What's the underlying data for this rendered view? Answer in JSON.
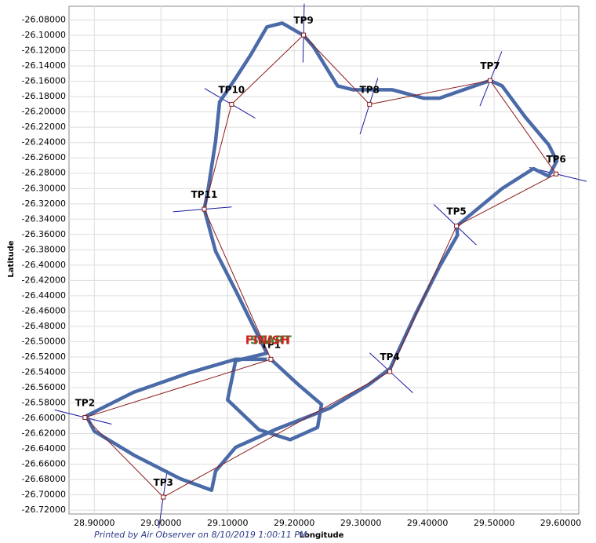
{
  "chart_data": {
    "type": "line",
    "x_label": "Longitude",
    "y_label": "Latitude",
    "footer": "Printed by Air Observer on 8/10/2019 1:00:11 PM",
    "start_label": "START",
    "start_color": "#2e8b2e",
    "finish_label": "FINISH",
    "finish_color": "#d42020",
    "grid": true,
    "xlim": [
      28.862,
      29.627
    ],
    "ylim": [
      -26.725,
      -26.062
    ],
    "xticks": [
      {
        "value": 28.9,
        "label": "28.90000"
      },
      {
        "value": 29.0,
        "label": "29.00000"
      },
      {
        "value": 29.1,
        "label": "29.10000"
      },
      {
        "value": 29.2,
        "label": "29.20000"
      },
      {
        "value": 29.3,
        "label": "29.30000"
      },
      {
        "value": 29.4,
        "label": "29.40000"
      },
      {
        "value": 29.5,
        "label": "29.50000"
      },
      {
        "value": 29.6,
        "label": "29.60000"
      }
    ],
    "yticks": [
      {
        "value": -26.08,
        "label": "-26.08000"
      },
      {
        "value": -26.1,
        "label": "-26.10000"
      },
      {
        "value": -26.12,
        "label": "-26.12000"
      },
      {
        "value": -26.14,
        "label": "-26.14000"
      },
      {
        "value": -26.16,
        "label": "-26.16000"
      },
      {
        "value": -26.18,
        "label": "-26.18000"
      },
      {
        "value": -26.2,
        "label": "-26.20000"
      },
      {
        "value": -26.22,
        "label": "-26.22000"
      },
      {
        "value": -26.24,
        "label": "-26.24000"
      },
      {
        "value": -26.26,
        "label": "-26.26000"
      },
      {
        "value": -26.28,
        "label": "-26.28000"
      },
      {
        "value": -26.3,
        "label": "-26.30000"
      },
      {
        "value": -26.32,
        "label": "-26.32000"
      },
      {
        "value": -26.34,
        "label": "-26.34000"
      },
      {
        "value": -26.36,
        "label": "-26.36000"
      },
      {
        "value": -26.38,
        "label": "-26.38000"
      },
      {
        "value": -26.4,
        "label": "-26.40000"
      },
      {
        "value": -26.42,
        "label": "-26.42000"
      },
      {
        "value": -26.44,
        "label": "-26.44000"
      },
      {
        "value": -26.46,
        "label": "-26.46000"
      },
      {
        "value": -26.48,
        "label": "-26.48000"
      },
      {
        "value": -26.5,
        "label": "-26.50000"
      },
      {
        "value": -26.52,
        "label": "-26.52000"
      },
      {
        "value": -26.54,
        "label": "-26.54000"
      },
      {
        "value": -26.56,
        "label": "-26.56000"
      },
      {
        "value": -26.58,
        "label": "-26.58000"
      },
      {
        "value": -26.6,
        "label": "-26.60000"
      },
      {
        "value": -26.62,
        "label": "-26.62000"
      },
      {
        "value": -26.64,
        "label": "-26.64000"
      },
      {
        "value": -26.66,
        "label": "-26.66000"
      },
      {
        "value": -26.68,
        "label": "-26.68000"
      },
      {
        "value": -26.7,
        "label": "-26.70000"
      },
      {
        "value": -26.72,
        "label": "-26.72000"
      }
    ],
    "task": {
      "color": "#8b1a1a",
      "sector_color": "#1a1aa0",
      "labels": [
        "TP1",
        "TP2",
        "TP3",
        "TP4",
        "TP5",
        "TP6",
        "TP7",
        "TP8",
        "TP9",
        "TP10",
        "TP11"
      ],
      "x": [
        29.165,
        28.886,
        29.0035,
        29.3435,
        29.4435,
        29.593,
        29.494,
        29.313,
        29.214,
        29.106,
        29.065
      ],
      "y": [
        -26.523,
        -26.599,
        -26.703,
        -26.539,
        -26.349,
        -26.281,
        -26.159,
        -26.19,
        -26.0995,
        -26.19,
        -26.327
      ]
    },
    "track": {
      "color": "#4a6aa8",
      "x": [
        29.159,
        29.112,
        29.041,
        28.959,
        28.888,
        28.9,
        28.959,
        29.029,
        29.076,
        29.082,
        29.112,
        29.171,
        29.253,
        29.312,
        29.344,
        29.382,
        29.418,
        29.445,
        29.444,
        29.512,
        29.559,
        29.582,
        29.594,
        29.582,
        29.547,
        29.512,
        29.494,
        29.418,
        29.394,
        29.347,
        29.288,
        29.265,
        29.229,
        29.214,
        29.182,
        29.159,
        29.135,
        29.112,
        29.088,
        29.082,
        29.071,
        29.065,
        29.082,
        29.112,
        29.141,
        29.159,
        29.112,
        29.1,
        29.147,
        29.194,
        29.235,
        29.241,
        29.206,
        29.165
      ],
      "y": [
        -26.523,
        -26.523,
        -26.541,
        -26.566,
        -26.597,
        -26.617,
        -26.648,
        -26.679,
        -26.694,
        -26.669,
        -26.638,
        -26.615,
        -26.587,
        -26.556,
        -26.535,
        -26.464,
        -26.402,
        -26.361,
        -26.349,
        -26.3,
        -26.274,
        -26.284,
        -26.264,
        -26.243,
        -26.207,
        -26.166,
        -26.159,
        -26.182,
        -26.182,
        -26.171,
        -26.171,
        -26.166,
        -26.115,
        -26.1,
        -26.084,
        -26.089,
        -26.125,
        -26.156,
        -26.187,
        -26.238,
        -26.3,
        -26.327,
        -26.382,
        -26.433,
        -26.484,
        -26.515,
        -26.525,
        -26.576,
        -26.615,
        -26.628,
        -26.612,
        -26.582,
        -26.556,
        -26.523
      ]
    }
  }
}
